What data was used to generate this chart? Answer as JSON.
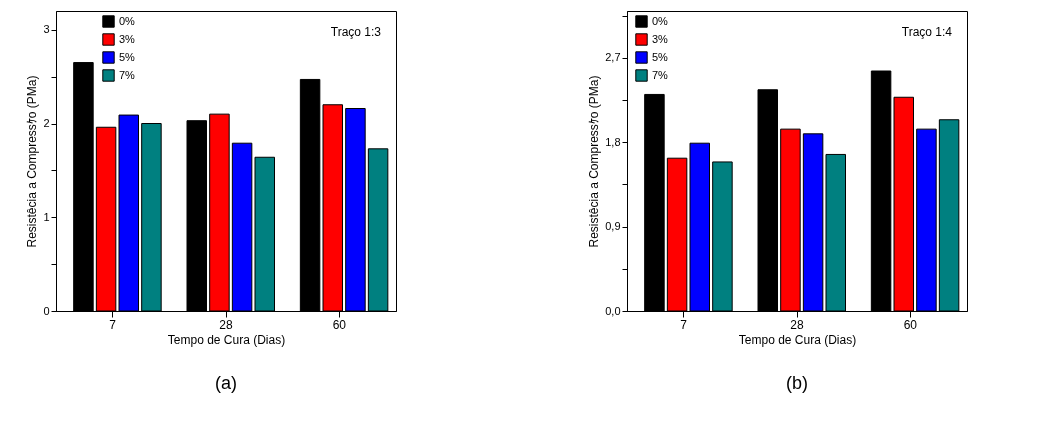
{
  "chart_data": [
    {
      "type": "bar",
      "categories": [
        "7",
        "28",
        "60"
      ],
      "xlabel": "Tempo de Cura (Dias)",
      "ylabel": "Resistêcia a Compressｹo (PMa)",
      "ylim": [
        0,
        3.2
      ],
      "yticks": [
        0,
        {
          "value": 0.5,
          "label": null
        },
        1,
        {
          "value": 1.5,
          "label": null
        },
        2,
        {
          "value": 2.5,
          "label": null
        },
        3
      ],
      "legend": "top left",
      "grid": false,
      "annotations": [
        "Traço 1:3",
        "(a)"
      ],
      "series": [
        {
          "name": "0%",
          "color": "#000000",
          "values": [
            2.65,
            2.03,
            2.47
          ]
        },
        {
          "name": "3%",
          "color": "#ff0000",
          "values": [
            1.96,
            2.1,
            2.2
          ]
        },
        {
          "name": "5%",
          "color": "#0000ff",
          "values": [
            2.09,
            1.79,
            2.16
          ]
        },
        {
          "name": "7%",
          "color": "#008080",
          "values": [
            2.0,
            1.64,
            1.73
          ]
        }
      ]
    },
    {
      "type": "bar",
      "categories": [
        "7",
        "28",
        "60"
      ],
      "xlabel": "Tempo de Cura (Dias)",
      "ylabel": "Resistêcia a Compressｹo (PMa)",
      "ylim": [
        0,
        3.2
      ],
      "yticks": [
        {
          "value": 0,
          "label": "0,0"
        },
        {
          "value": 0.45,
          "label": null
        },
        {
          "value": 0.9,
          "label": "0,9"
        },
        {
          "value": 1.35,
          "label": null
        },
        {
          "value": 1.8,
          "label": "1,8"
        },
        {
          "value": 2.25,
          "label": null
        },
        {
          "value": 2.7,
          "label": "2,7"
        },
        {
          "value": 3.15,
          "label": null
        }
      ],
      "legend": "top left",
      "grid": false,
      "annotations": [
        "Traço 1:4",
        "(b)"
      ],
      "series": [
        {
          "name": "0%",
          "color": "#000000",
          "values": [
            2.31,
            2.36,
            2.56
          ]
        },
        {
          "name": "3%",
          "color": "#ff0000",
          "values": [
            1.63,
            1.94,
            2.28
          ]
        },
        {
          "name": "5%",
          "color": "#0000ff",
          "values": [
            1.79,
            1.89,
            1.94
          ]
        },
        {
          "name": "7%",
          "color": "#008080",
          "values": [
            1.59,
            1.67,
            2.04
          ]
        }
      ]
    }
  ]
}
